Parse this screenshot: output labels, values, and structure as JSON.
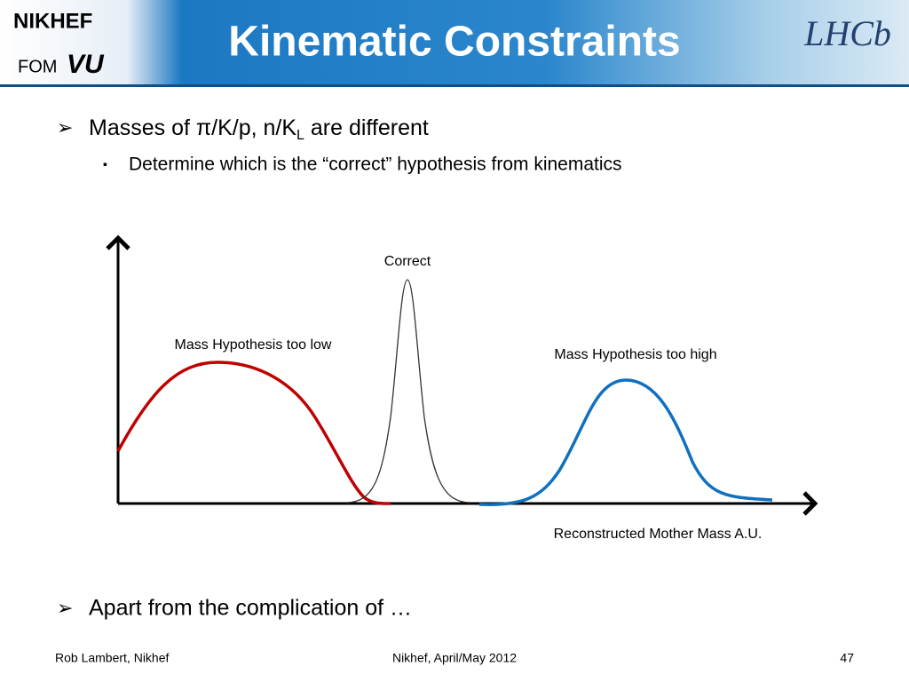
{
  "header": {
    "title": "Kinematic Constraints",
    "logos": [
      "NIKHEF",
      "FOM",
      "VU",
      "LHCb"
    ]
  },
  "bullets": [
    {
      "text": "Masses of π/K/p, n/K",
      "subscript": "L",
      "tail": " are different",
      "subbullets": [
        "Determine which is the “correct” hypothesis from kinematics"
      ]
    },
    {
      "text": "Apart from the complication of …"
    }
  ],
  "diagram": {
    "labels": [
      "Correct",
      "Mass Hypothesis too low",
      "Mass Hypothesis too high"
    ],
    "axis_label": "Reconstructed Mother Mass A.U."
  },
  "footer": {
    "left": "Rob Lambert, Nikhef",
    "center": "Nikhef, April/May 2012",
    "right": "47"
  }
}
